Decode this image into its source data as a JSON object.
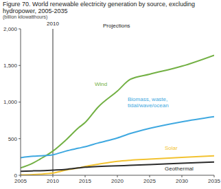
{
  "chart_data": {
    "type": "line",
    "title": "Figure 70. World renewable electricity generation by source, excluding hydropower, 2005-2035",
    "subtitle": "(billion kilowatthours)",
    "x": [
      2005,
      2007,
      2008,
      2010,
      2012,
      2014,
      2015,
      2017,
      2020,
      2022,
      2025,
      2030,
      2035
    ],
    "series": [
      {
        "name": "Wind",
        "color": "#72b043",
        "values": [
          100,
          170,
          220,
          330,
          480,
          650,
          720,
          930,
          1150,
          1310,
          1380,
          1490,
          1640
        ]
      },
      {
        "name": "Biomass, waste, tidal/wave/ocean",
        "color": "#3ea8e0",
        "values": [
          240,
          260,
          265,
          280,
          330,
          370,
          390,
          440,
          510,
          570,
          640,
          730,
          800
        ]
      },
      {
        "name": "Solar",
        "color": "#f2c230",
        "values": [
          5,
          10,
          15,
          30,
          70,
          100,
          120,
          150,
          190,
          205,
          220,
          245,
          265
        ]
      },
      {
        "name": "Geothermal",
        "color": "#2b2b2b",
        "values": [
          55,
          60,
          62,
          70,
          80,
          100,
          110,
          120,
          130,
          135,
          145,
          165,
          180
        ]
      }
    ],
    "xlim": [
      2005,
      2035
    ],
    "xticks": [
      2005,
      2010,
      2015,
      2020,
      2025,
      2030,
      2035
    ],
    "ylim": [
      0,
      2000
    ],
    "yticks": [
      0,
      500,
      {
        "value": 1000,
        "label": "1,000"
      },
      {
        "value": 1500,
        "label": "1,500"
      },
      {
        "value": 2000,
        "label": "2,000"
      }
    ],
    "grid": false,
    "annotations": [
      {
        "text": "2010",
        "x": 2010
      },
      {
        "text": "Projections"
      }
    ]
  }
}
